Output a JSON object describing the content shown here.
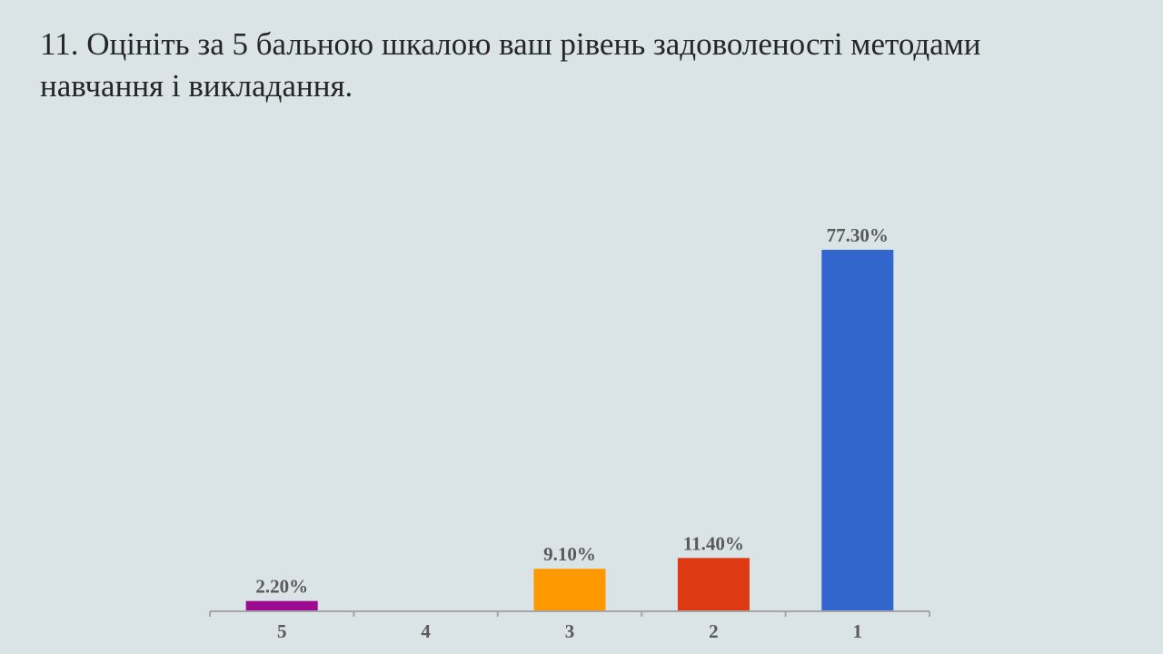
{
  "slide": {
    "title": "11. Оцініть за 5 бальною шкалою ваш рівень задоволеності методами навчання і викладання."
  },
  "chart_data": {
    "type": "bar",
    "title": "",
    "xlabel": "",
    "ylabel": "",
    "categories": [
      "5",
      "4",
      "3",
      "2",
      "1"
    ],
    "values": [
      2.2,
      0,
      9.1,
      11.4,
      77.3
    ],
    "data_labels": [
      "2.20%",
      "",
      "9.10%",
      "11.40%",
      "77.30%"
    ],
    "colors": [
      "#9b0a8f",
      "#3266cc",
      "#fe9800",
      "#dd3912",
      "#3266cc"
    ],
    "ylim": [
      0,
      77.3
    ],
    "grid": false,
    "legend": "none"
  }
}
